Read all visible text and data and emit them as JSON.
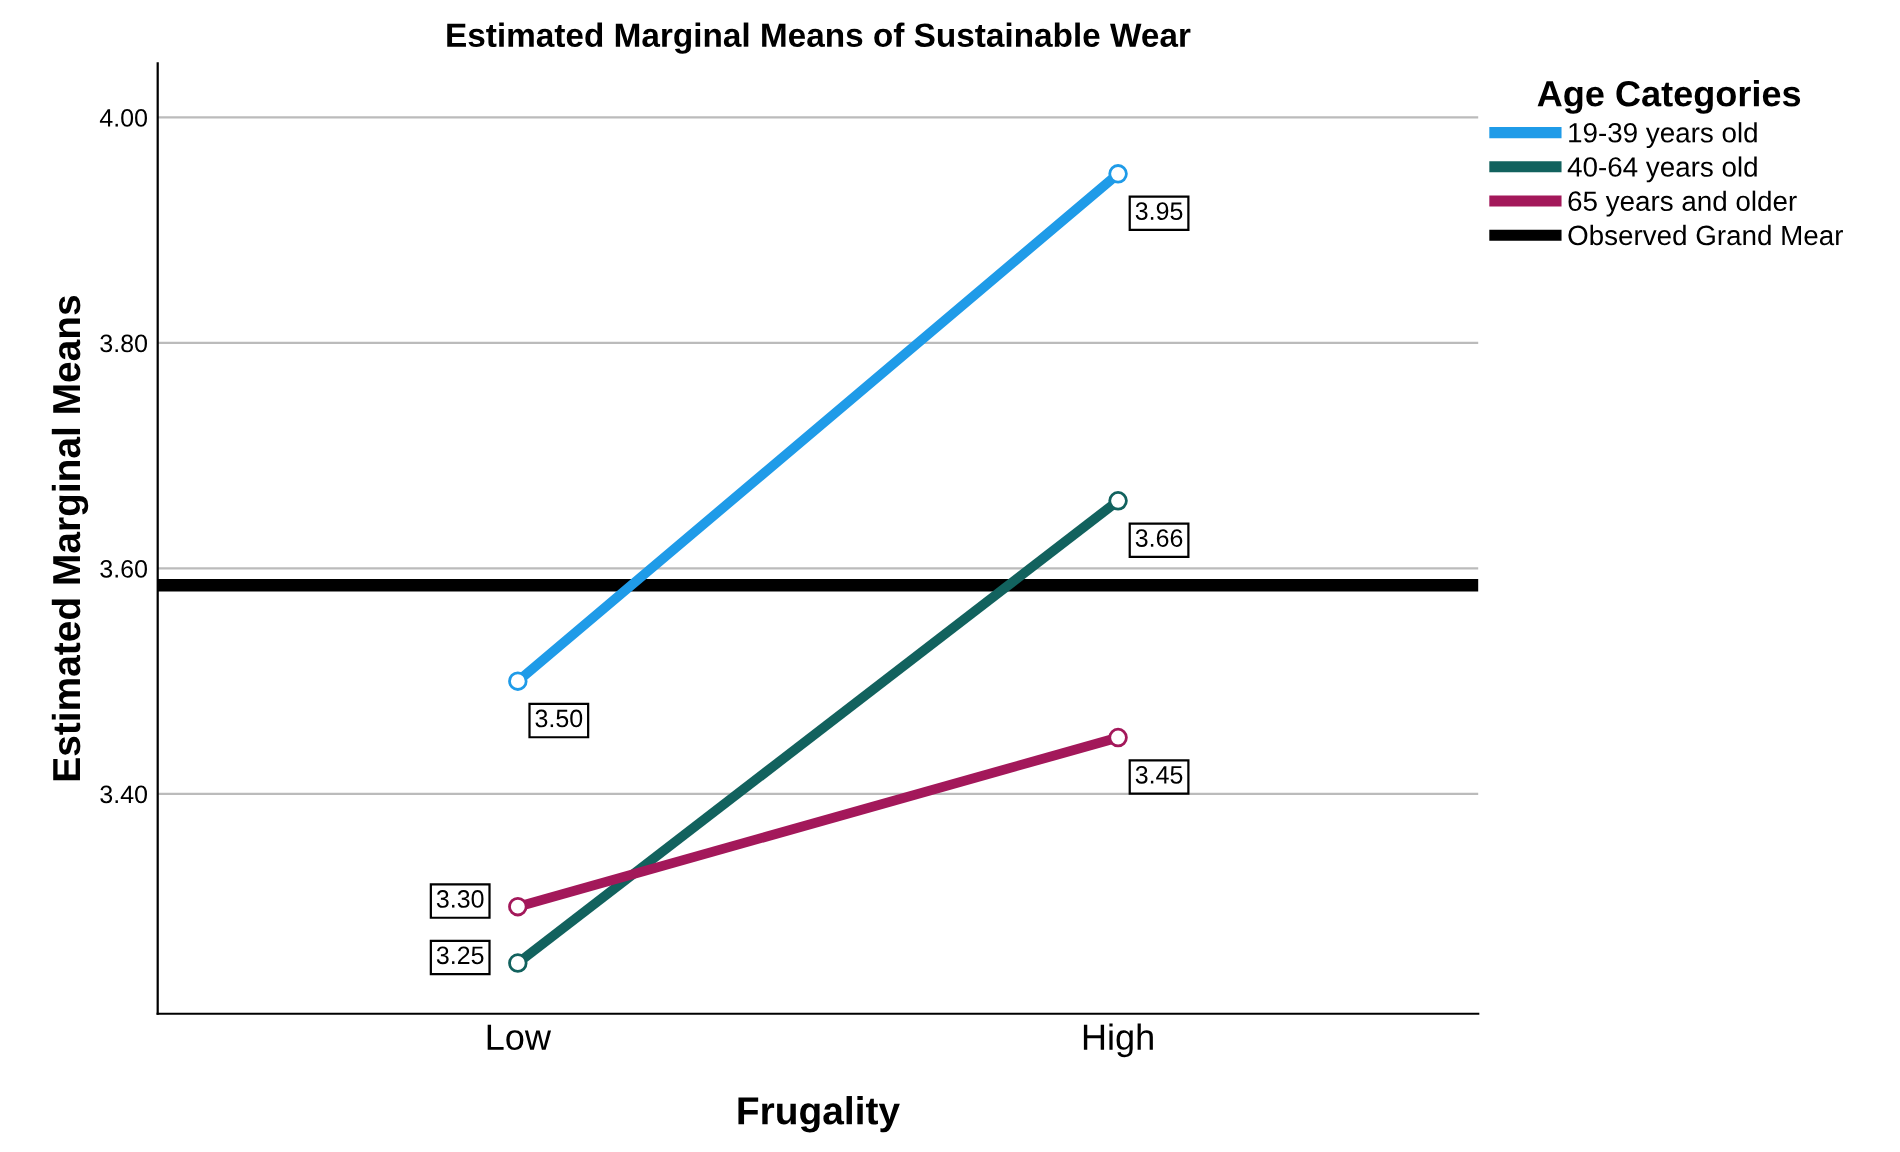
{
  "chart_data": {
    "type": "line",
    "title": "Estimated Marginal Means of Sustainable Wear",
    "xlabel": "Frugality",
    "ylabel": "Estimated Marginal Means",
    "legend_title": "Age Categories",
    "categories": [
      "Low",
      "High"
    ],
    "series": [
      {
        "name": "19-39 years old",
        "color": "#1f9be8",
        "values": [
          3.5,
          3.95
        ],
        "value_labels": [
          "3.50",
          "3.95"
        ]
      },
      {
        "name": "40-64 years old",
        "color": "#12625e",
        "values": [
          3.25,
          3.66
        ],
        "value_labels": [
          "3.25",
          "3.66"
        ]
      },
      {
        "name": "65 years and older",
        "color": "#a3185a",
        "values": [
          3.3,
          3.45
        ],
        "value_labels": [
          "3.30",
          "3.45"
        ]
      }
    ],
    "ref_lines": [
      {
        "axis": "y",
        "value": 3.585,
        "label": "Observed Grand Mear",
        "color": "#000000"
      }
    ],
    "ylim": [
      3.205,
      4.048
    ],
    "yticks": [
      {
        "value": 3.4,
        "label": "3.40"
      },
      {
        "value": 3.6,
        "label": "3.60"
      },
      {
        "value": 3.8,
        "label": "3.80"
      },
      {
        "value": 4.0,
        "label": "4.00"
      }
    ],
    "grid": "y",
    "legend": "top right",
    "marker": "circle",
    "line_style": "solid"
  }
}
